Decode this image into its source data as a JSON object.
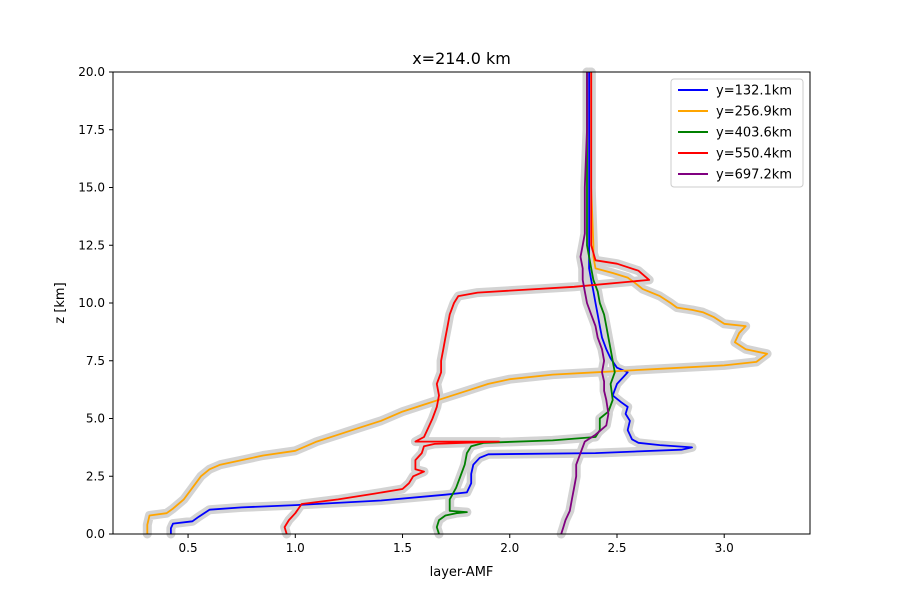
{
  "chart_data": {
    "type": "line",
    "title": "x=214.0 km",
    "xlabel": "layer-AMF",
    "ylabel": "z [km]",
    "xlim": [
      0.15,
      3.4
    ],
    "ylim": [
      0,
      20
    ],
    "xticks": [
      0.5,
      1.0,
      1.5,
      2.0,
      2.5,
      3.0
    ],
    "xtick_labels": [
      "0.5",
      "1.0",
      "1.5",
      "2.0",
      "2.5",
      "3.0"
    ],
    "yticks": [
      0,
      2.5,
      5,
      7.5,
      10,
      12.5,
      15,
      17.5,
      20
    ],
    "ytick_labels": [
      "0.0",
      "2.5",
      "5.0",
      "7.5",
      "10.0",
      "12.5",
      "15.0",
      "17.5",
      "20.0"
    ],
    "grid": false,
    "legend_position": "top-right",
    "band_color": "#d3d3d3",
    "series": [
      {
        "name": "y=132.1km",
        "color": "#0000ff",
        "points": [
          [
            0.42,
            0.0
          ],
          [
            0.42,
            0.25
          ],
          [
            0.43,
            0.45
          ],
          [
            0.52,
            0.55
          ],
          [
            0.55,
            0.75
          ],
          [
            0.6,
            1.05
          ],
          [
            0.75,
            1.15
          ],
          [
            1.0,
            1.25
          ],
          [
            1.4,
            1.45
          ],
          [
            1.7,
            1.7
          ],
          [
            1.8,
            1.8
          ],
          [
            1.82,
            2.2
          ],
          [
            1.82,
            2.6
          ],
          [
            1.83,
            3.0
          ],
          [
            1.86,
            3.3
          ],
          [
            1.9,
            3.45
          ],
          [
            2.4,
            3.5
          ],
          [
            2.8,
            3.65
          ],
          [
            2.85,
            3.75
          ],
          [
            2.7,
            3.85
          ],
          [
            2.6,
            3.95
          ],
          [
            2.57,
            4.1
          ],
          [
            2.55,
            4.5
          ],
          [
            2.56,
            4.9
          ],
          [
            2.54,
            5.2
          ],
          [
            2.55,
            5.5
          ],
          [
            2.52,
            5.7
          ],
          [
            2.48,
            6.0
          ],
          [
            2.5,
            6.5
          ],
          [
            2.55,
            7.0
          ],
          [
            2.5,
            7.2
          ],
          [
            2.47,
            7.6
          ],
          [
            2.45,
            8.0
          ],
          [
            2.43,
            8.5
          ],
          [
            2.42,
            9.0
          ],
          [
            2.41,
            9.5
          ],
          [
            2.4,
            10.0
          ],
          [
            2.39,
            10.5
          ],
          [
            2.38,
            11.0
          ],
          [
            2.37,
            11.5
          ],
          [
            2.37,
            12.5
          ],
          [
            2.37,
            15.0
          ],
          [
            2.37,
            17.5
          ],
          [
            2.37,
            20.0
          ]
        ]
      },
      {
        "name": "y=256.9km",
        "color": "#ffa500",
        "points": [
          [
            0.31,
            0.0
          ],
          [
            0.31,
            0.4
          ],
          [
            0.32,
            0.8
          ],
          [
            0.4,
            0.9
          ],
          [
            0.43,
            1.1
          ],
          [
            0.48,
            1.5
          ],
          [
            0.52,
            2.0
          ],
          [
            0.56,
            2.5
          ],
          [
            0.6,
            2.8
          ],
          [
            0.65,
            3.0
          ],
          [
            0.75,
            3.2
          ],
          [
            0.85,
            3.4
          ],
          [
            1.0,
            3.6
          ],
          [
            1.05,
            3.8
          ],
          [
            1.1,
            4.0
          ],
          [
            1.2,
            4.3
          ],
          [
            1.3,
            4.6
          ],
          [
            1.4,
            4.9
          ],
          [
            1.5,
            5.3
          ],
          [
            1.6,
            5.6
          ],
          [
            1.7,
            5.9
          ],
          [
            1.8,
            6.2
          ],
          [
            1.9,
            6.5
          ],
          [
            2.0,
            6.7
          ],
          [
            2.2,
            6.9
          ],
          [
            2.4,
            7.0
          ],
          [
            2.7,
            7.15
          ],
          [
            3.0,
            7.3
          ],
          [
            3.15,
            7.45
          ],
          [
            3.2,
            7.8
          ],
          [
            3.1,
            8.0
          ],
          [
            3.05,
            8.3
          ],
          [
            3.07,
            8.7
          ],
          [
            3.1,
            9.0
          ],
          [
            3.0,
            9.1
          ],
          [
            2.95,
            9.4
          ],
          [
            2.9,
            9.6
          ],
          [
            2.85,
            9.7
          ],
          [
            2.78,
            9.8
          ],
          [
            2.75,
            10.0
          ],
          [
            2.7,
            10.3
          ],
          [
            2.62,
            10.6
          ],
          [
            2.58,
            10.9
          ],
          [
            2.55,
            11.1
          ],
          [
            2.48,
            11.3
          ],
          [
            2.4,
            11.5
          ],
          [
            2.39,
            12.0
          ],
          [
            2.39,
            12.5
          ],
          [
            2.38,
            15.0
          ],
          [
            2.38,
            17.5
          ],
          [
            2.38,
            20.0
          ]
        ]
      },
      {
        "name": "y=403.6km",
        "color": "#008000",
        "points": [
          [
            1.67,
            0.0
          ],
          [
            1.66,
            0.3
          ],
          [
            1.67,
            0.6
          ],
          [
            1.7,
            0.8
          ],
          [
            1.75,
            0.9
          ],
          [
            1.8,
            0.95
          ],
          [
            1.72,
            1.0
          ],
          [
            1.72,
            1.5
          ],
          [
            1.75,
            2.0
          ],
          [
            1.77,
            2.5
          ],
          [
            1.79,
            3.0
          ],
          [
            1.8,
            3.5
          ],
          [
            1.82,
            3.8
          ],
          [
            1.88,
            3.95
          ],
          [
            2.2,
            4.05
          ],
          [
            2.4,
            4.2
          ],
          [
            2.42,
            4.5
          ],
          [
            2.42,
            5.0
          ],
          [
            2.46,
            5.3
          ],
          [
            2.48,
            5.8
          ],
          [
            2.47,
            6.5
          ],
          [
            2.49,
            7.0
          ],
          [
            2.48,
            7.5
          ],
          [
            2.47,
            8.0
          ],
          [
            2.46,
            8.5
          ],
          [
            2.45,
            9.0
          ],
          [
            2.44,
            9.5
          ],
          [
            2.42,
            10.0
          ],
          [
            2.41,
            10.5
          ],
          [
            2.39,
            11.0
          ],
          [
            2.38,
            11.5
          ],
          [
            2.37,
            12.0
          ],
          [
            2.36,
            12.5
          ],
          [
            2.36,
            15.0
          ],
          [
            2.36,
            17.5
          ],
          [
            2.36,
            20.0
          ]
        ]
      },
      {
        "name": "y=550.4km",
        "color": "#ff0000",
        "points": [
          [
            0.96,
            0.0
          ],
          [
            0.95,
            0.3
          ],
          [
            0.97,
            0.6
          ],
          [
            1.0,
            0.9
          ],
          [
            1.03,
            1.3
          ],
          [
            1.2,
            1.5
          ],
          [
            1.37,
            1.75
          ],
          [
            1.5,
            1.95
          ],
          [
            1.53,
            2.2
          ],
          [
            1.55,
            2.5
          ],
          [
            1.6,
            2.7
          ],
          [
            1.56,
            2.8
          ],
          [
            1.56,
            3.2
          ],
          [
            1.59,
            3.5
          ],
          [
            1.6,
            3.8
          ],
          [
            1.65,
            3.9
          ],
          [
            1.95,
            4.0
          ],
          [
            1.56,
            4.0
          ],
          [
            1.6,
            4.2
          ],
          [
            1.62,
            4.6
          ],
          [
            1.64,
            5.0
          ],
          [
            1.66,
            5.5
          ],
          [
            1.67,
            6.0
          ],
          [
            1.66,
            6.5
          ],
          [
            1.68,
            7.0
          ],
          [
            1.68,
            7.5
          ],
          [
            1.69,
            8.0
          ],
          [
            1.7,
            8.5
          ],
          [
            1.71,
            9.0
          ],
          [
            1.72,
            9.5
          ],
          [
            1.74,
            10.0
          ],
          [
            1.76,
            10.3
          ],
          [
            1.85,
            10.45
          ],
          [
            2.3,
            10.7
          ],
          [
            2.65,
            11.0
          ],
          [
            2.6,
            11.4
          ],
          [
            2.5,
            11.7
          ],
          [
            2.4,
            11.85
          ],
          [
            2.38,
            12.5
          ],
          [
            2.38,
            15.0
          ],
          [
            2.38,
            17.5
          ],
          [
            2.38,
            20.0
          ]
        ]
      },
      {
        "name": "y=697.2km",
        "color": "#800080",
        "points": [
          [
            2.24,
            0.0
          ],
          [
            2.25,
            0.3
          ],
          [
            2.26,
            0.6
          ],
          [
            2.28,
            1.0
          ],
          [
            2.29,
            1.5
          ],
          [
            2.3,
            2.0
          ],
          [
            2.31,
            2.5
          ],
          [
            2.31,
            3.0
          ],
          [
            2.33,
            3.5
          ],
          [
            2.35,
            4.0
          ],
          [
            2.4,
            4.3
          ],
          [
            2.45,
            4.7
          ],
          [
            2.46,
            5.2
          ],
          [
            2.45,
            5.8
          ],
          [
            2.44,
            6.2
          ],
          [
            2.44,
            6.6
          ],
          [
            2.43,
            7.0
          ],
          [
            2.44,
            7.5
          ],
          [
            2.43,
            8.0
          ],
          [
            2.41,
            8.5
          ],
          [
            2.4,
            9.0
          ],
          [
            2.38,
            9.5
          ],
          [
            2.36,
            10.0
          ],
          [
            2.35,
            10.5
          ],
          [
            2.34,
            11.0
          ],
          [
            2.34,
            11.5
          ],
          [
            2.33,
            12.0
          ],
          [
            2.34,
            12.5
          ],
          [
            2.35,
            13.0
          ],
          [
            2.35,
            15.0
          ],
          [
            2.36,
            17.5
          ],
          [
            2.36,
            20.0
          ]
        ]
      }
    ]
  }
}
